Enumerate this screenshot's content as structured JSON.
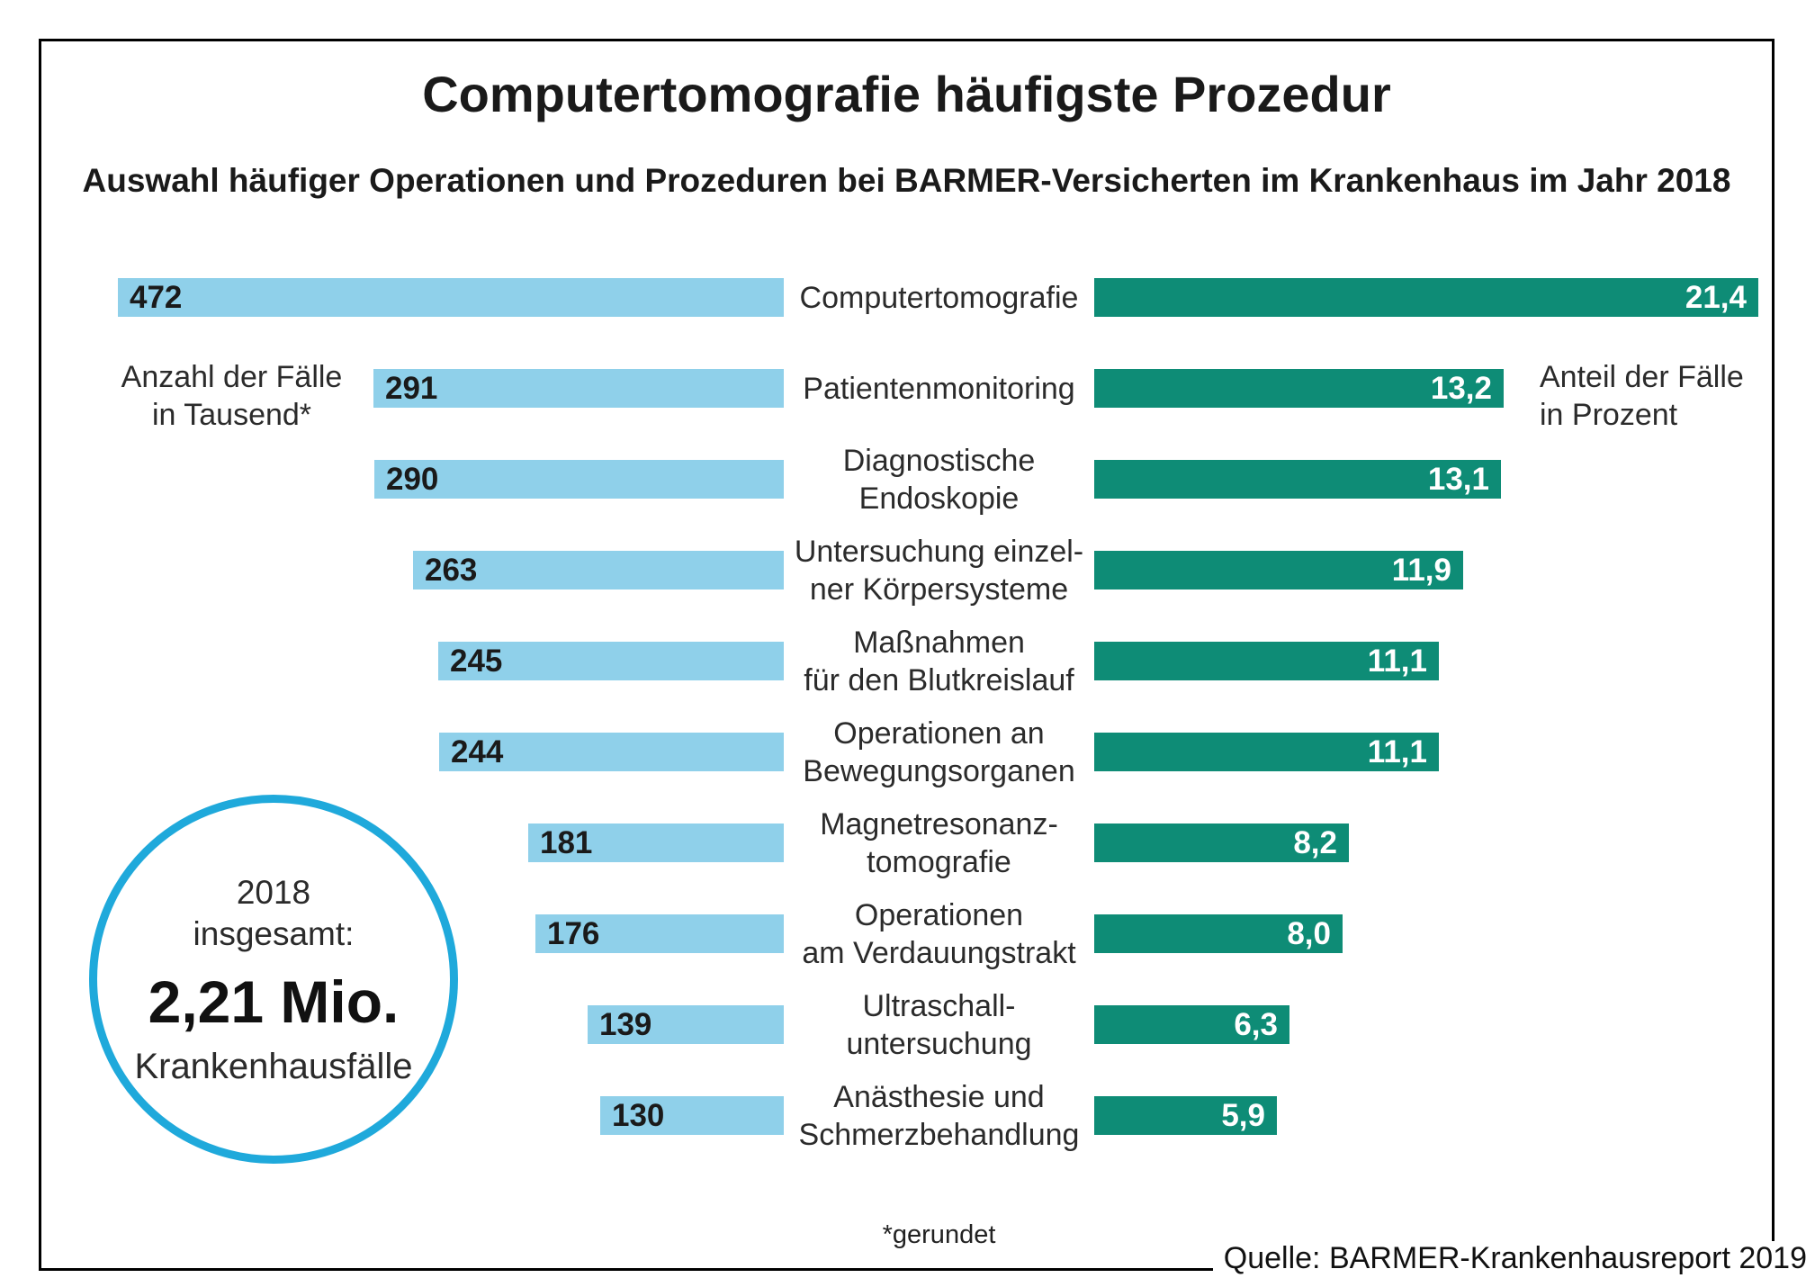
{
  "title": "Computertomografie häufigste Prozedur",
  "subtitle": "Auswahl häufiger Operationen und Prozeduren bei BARMER-Versicherten im Krankenhaus im Jahr 2018",
  "annotations": {
    "left_axis": "Anzahl der Fälle\nin Tausend*",
    "right_axis": "Anteil der Fälle\nin Prozent",
    "footnote": "*gerundet",
    "source": "Quelle: BARMER-Krankenhausreport 2019"
  },
  "total_circle": {
    "top_lines": "2018\ninsgesamt:",
    "value": "2,21 Mio.",
    "bottom_line": "Krankenhausfälle"
  },
  "colors": {
    "count_bar": "#8FD0EA",
    "percent_bar": "#0E8C76",
    "circle_border": "#1FA9DB",
    "frame_border": "#000000"
  },
  "chart_data": {
    "type": "bar",
    "orientation": "horizontal-bidirectional",
    "title": "Computertomografie häufigste Prozedur",
    "subtitle": "Auswahl häufiger Operationen und Prozeduren bei BARMER-Versicherten im Krankenhaus im Jahr 2018",
    "categories": [
      [
        "Computertomografie"
      ],
      [
        "Patientenmonitoring"
      ],
      [
        "Diagnostische",
        "Endoskopie"
      ],
      [
        "Untersuchung einzel-",
        "ner Körpersysteme"
      ],
      [
        "Maßnahmen",
        "für den Blutkreislauf"
      ],
      [
        "Operationen an",
        "Bewegungsorganen"
      ],
      [
        "Magnetresonanz-",
        "tomografie"
      ],
      [
        "Operationen",
        "am Verdauungstrakt"
      ],
      [
        "Ultraschall-",
        "untersuchung"
      ],
      [
        "Anästhesie und",
        "Schmerzbehandlung"
      ]
    ],
    "series": [
      {
        "name": "Anzahl der Fälle in Tausend",
        "values": [
          472,
          291,
          290,
          263,
          245,
          244,
          181,
          176,
          139,
          130
        ],
        "labels": [
          "472",
          "291",
          "290",
          "263",
          "245",
          "244",
          "181",
          "176",
          "139",
          "130"
        ]
      },
      {
        "name": "Anteil der Fälle in Prozent",
        "values": [
          21.4,
          13.2,
          13.1,
          11.9,
          11.1,
          11.1,
          8.2,
          8.0,
          6.3,
          5.9
        ],
        "labels": [
          "21,4",
          "13,2",
          "13,1",
          "11,9",
          "11,1",
          "11,1",
          "8,2",
          "8,0",
          "6,3",
          "5,9"
        ]
      }
    ],
    "total_annotation": "2018 insgesamt: 2,21 Mio. Krankenhausfälle",
    "legend_position": "none",
    "grid": false
  }
}
